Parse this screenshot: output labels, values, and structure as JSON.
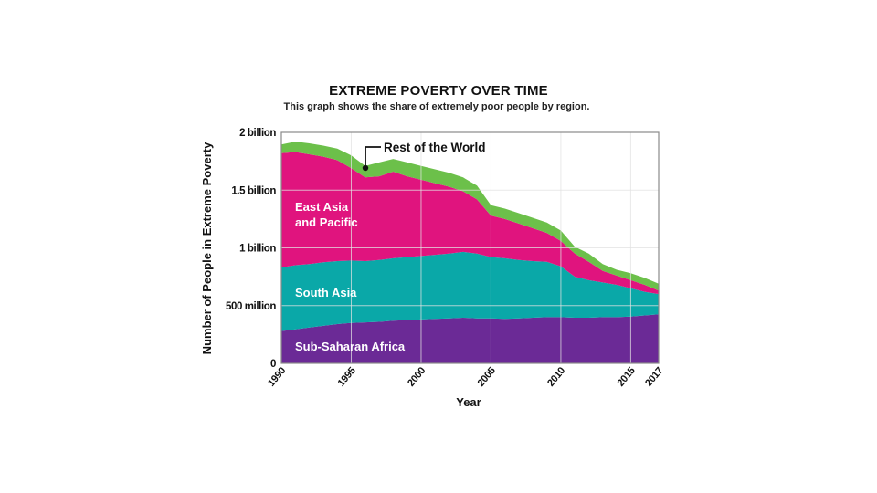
{
  "header": {
    "title": "EXTREME POVERTY OVER TIME",
    "subtitle": "This graph shows the share of extremely poor people by region."
  },
  "axes": {
    "y_title": "Number of People in Extreme Poverty",
    "x_title": "Year",
    "y_ticks": [
      {
        "value": 0,
        "label": "0"
      },
      {
        "value": 500,
        "label": "500 million"
      },
      {
        "value": 1000,
        "label": "1 billion"
      },
      {
        "value": 1500,
        "label": "1.5 billion"
      },
      {
        "value": 2000,
        "label": "2 billion"
      }
    ],
    "x_ticks": [
      "1990",
      "1995",
      "2000",
      "2005",
      "2010",
      "2015",
      "2017"
    ]
  },
  "labels": {
    "sub_saharan": "Sub-Saharan Africa",
    "south_asia": "South Asia",
    "east_asia_line1": "East Asia",
    "east_asia_line2": "and Pacific",
    "rest_of_world": "Rest of the World"
  },
  "colors": {
    "sub_saharan": "#6B2A96",
    "south_asia": "#0AA8A8",
    "east_asia": "#E0147E",
    "rest_of_world": "#6CC04A",
    "grid": "#e2e2e2",
    "frame": "#8a8a8a"
  },
  "chart_data": {
    "type": "area",
    "stacked": true,
    "title": "EXTREME POVERTY OVER TIME",
    "subtitle": "This graph shows the share of extremely poor people by region.",
    "xlabel": "Year",
    "ylabel": "Number of People in Extreme Poverty",
    "units": "millions of people",
    "ylim": [
      0,
      2000
    ],
    "xlim": [
      1990,
      2017
    ],
    "grid": true,
    "x": [
      1990,
      1991,
      1992,
      1993,
      1994,
      1995,
      1996,
      1997,
      1998,
      1999,
      2000,
      2001,
      2002,
      2003,
      2004,
      2005,
      2006,
      2007,
      2008,
      2009,
      2010,
      2011,
      2012,
      2013,
      2014,
      2015,
      2016,
      2017
    ],
    "series": [
      {
        "name": "Sub-Saharan Africa",
        "values": [
          280,
          295,
          310,
          325,
          340,
          350,
          355,
          360,
          370,
          375,
          380,
          385,
          390,
          395,
          390,
          390,
          385,
          390,
          395,
          400,
          400,
          395,
          395,
          400,
          400,
          405,
          415,
          425
        ]
      },
      {
        "name": "South Asia",
        "values": [
          550,
          555,
          550,
          550,
          545,
          540,
          530,
          535,
          540,
          545,
          550,
          555,
          560,
          570,
          560,
          530,
          525,
          505,
          490,
          480,
          440,
          355,
          325,
          300,
          280,
          245,
          205,
          175
        ]
      },
      {
        "name": "East Asia and Pacific",
        "values": [
          990,
          980,
          950,
          915,
          875,
          800,
          725,
          725,
          750,
          700,
          660,
          620,
          580,
          525,
          470,
          360,
          340,
          315,
          285,
          250,
          220,
          200,
          160,
          100,
          80,
          70,
          60,
          30
        ]
      },
      {
        "name": "Rest of the World",
        "values": [
          75,
          90,
          95,
          95,
          100,
          110,
          100,
          120,
          110,
          120,
          120,
          120,
          120,
          120,
          120,
          90,
          90,
          90,
          90,
          90,
          90,
          60,
          70,
          60,
          50,
          60,
          60,
          60
        ]
      }
    ],
    "annotations": [
      {
        "text": "Rest of the World",
        "x": 1996,
        "points_to": "Rest of the World band"
      }
    ]
  }
}
